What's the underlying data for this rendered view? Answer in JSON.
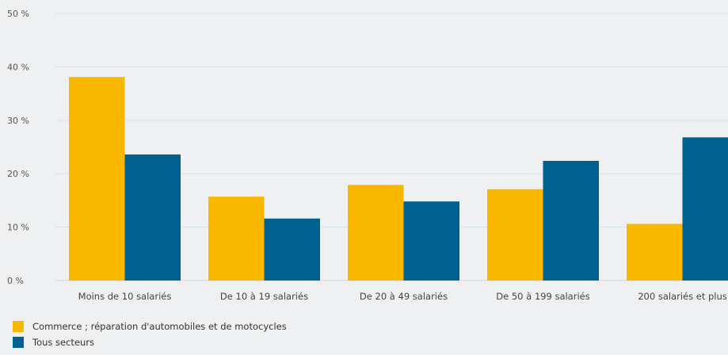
{
  "chart_data": {
    "type": "bar",
    "categories": [
      "Moins de 10 salariés",
      "De 10 à 19 salariés",
      "De 20 à 49 salariés",
      "De 50 à 199 salariés",
      "200 salariés et plus"
    ],
    "series": [
      {
        "name": "Commerce ; réparation d'automobiles et de motocycles",
        "color": "#f9b700",
        "values": [
          38.1,
          15.7,
          17.9,
          17.1,
          10.6
        ]
      },
      {
        "name": "Tous secteurs",
        "color": "#00608f",
        "values": [
          23.6,
          11.6,
          14.8,
          22.4,
          26.8
        ]
      }
    ],
    "yticks": [
      "0 %",
      "10 %",
      "20 %",
      "30 %",
      "40 %",
      "50 %"
    ],
    "ylim": [
      0,
      50
    ],
    "grid": true,
    "legend_position": "bottom-left"
  }
}
